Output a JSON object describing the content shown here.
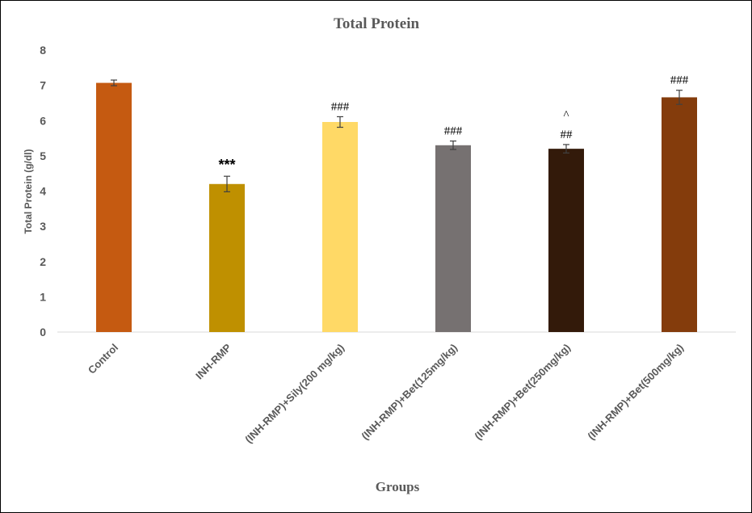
{
  "chart_data": {
    "type": "bar",
    "title": "Total Protein",
    "xlabel": "Groups",
    "ylabel": "Total Protein (g/dl)",
    "ylim": [
      0,
      8
    ],
    "yticks": [
      0,
      1,
      2,
      3,
      4,
      5,
      6,
      7,
      8
    ],
    "grid": false,
    "legend": "none",
    "categories": [
      "Control",
      "INH-RMP",
      "(INH-RMP)+Sily(200 mg/kg)",
      "(INH-RMP)+Bet(125mg/kg)",
      "(INH-RMP)+Bet(250mg/kg)",
      "(INH-RMP)+Bet(500mg/kg)"
    ],
    "values": [
      7.07,
      4.2,
      5.96,
      5.3,
      5.2,
      6.66
    ],
    "errors": [
      0.08,
      0.22,
      0.15,
      0.12,
      0.12,
      0.2
    ],
    "colors": [
      "#C55A11",
      "#BF9000",
      "#FFD966",
      "#767171",
      "#331A0A",
      "#843C0C"
    ],
    "annotations": [
      [],
      [
        "***"
      ],
      [
        "###"
      ],
      [
        "###"
      ],
      [
        "^",
        "##"
      ],
      [
        "###"
      ]
    ]
  }
}
